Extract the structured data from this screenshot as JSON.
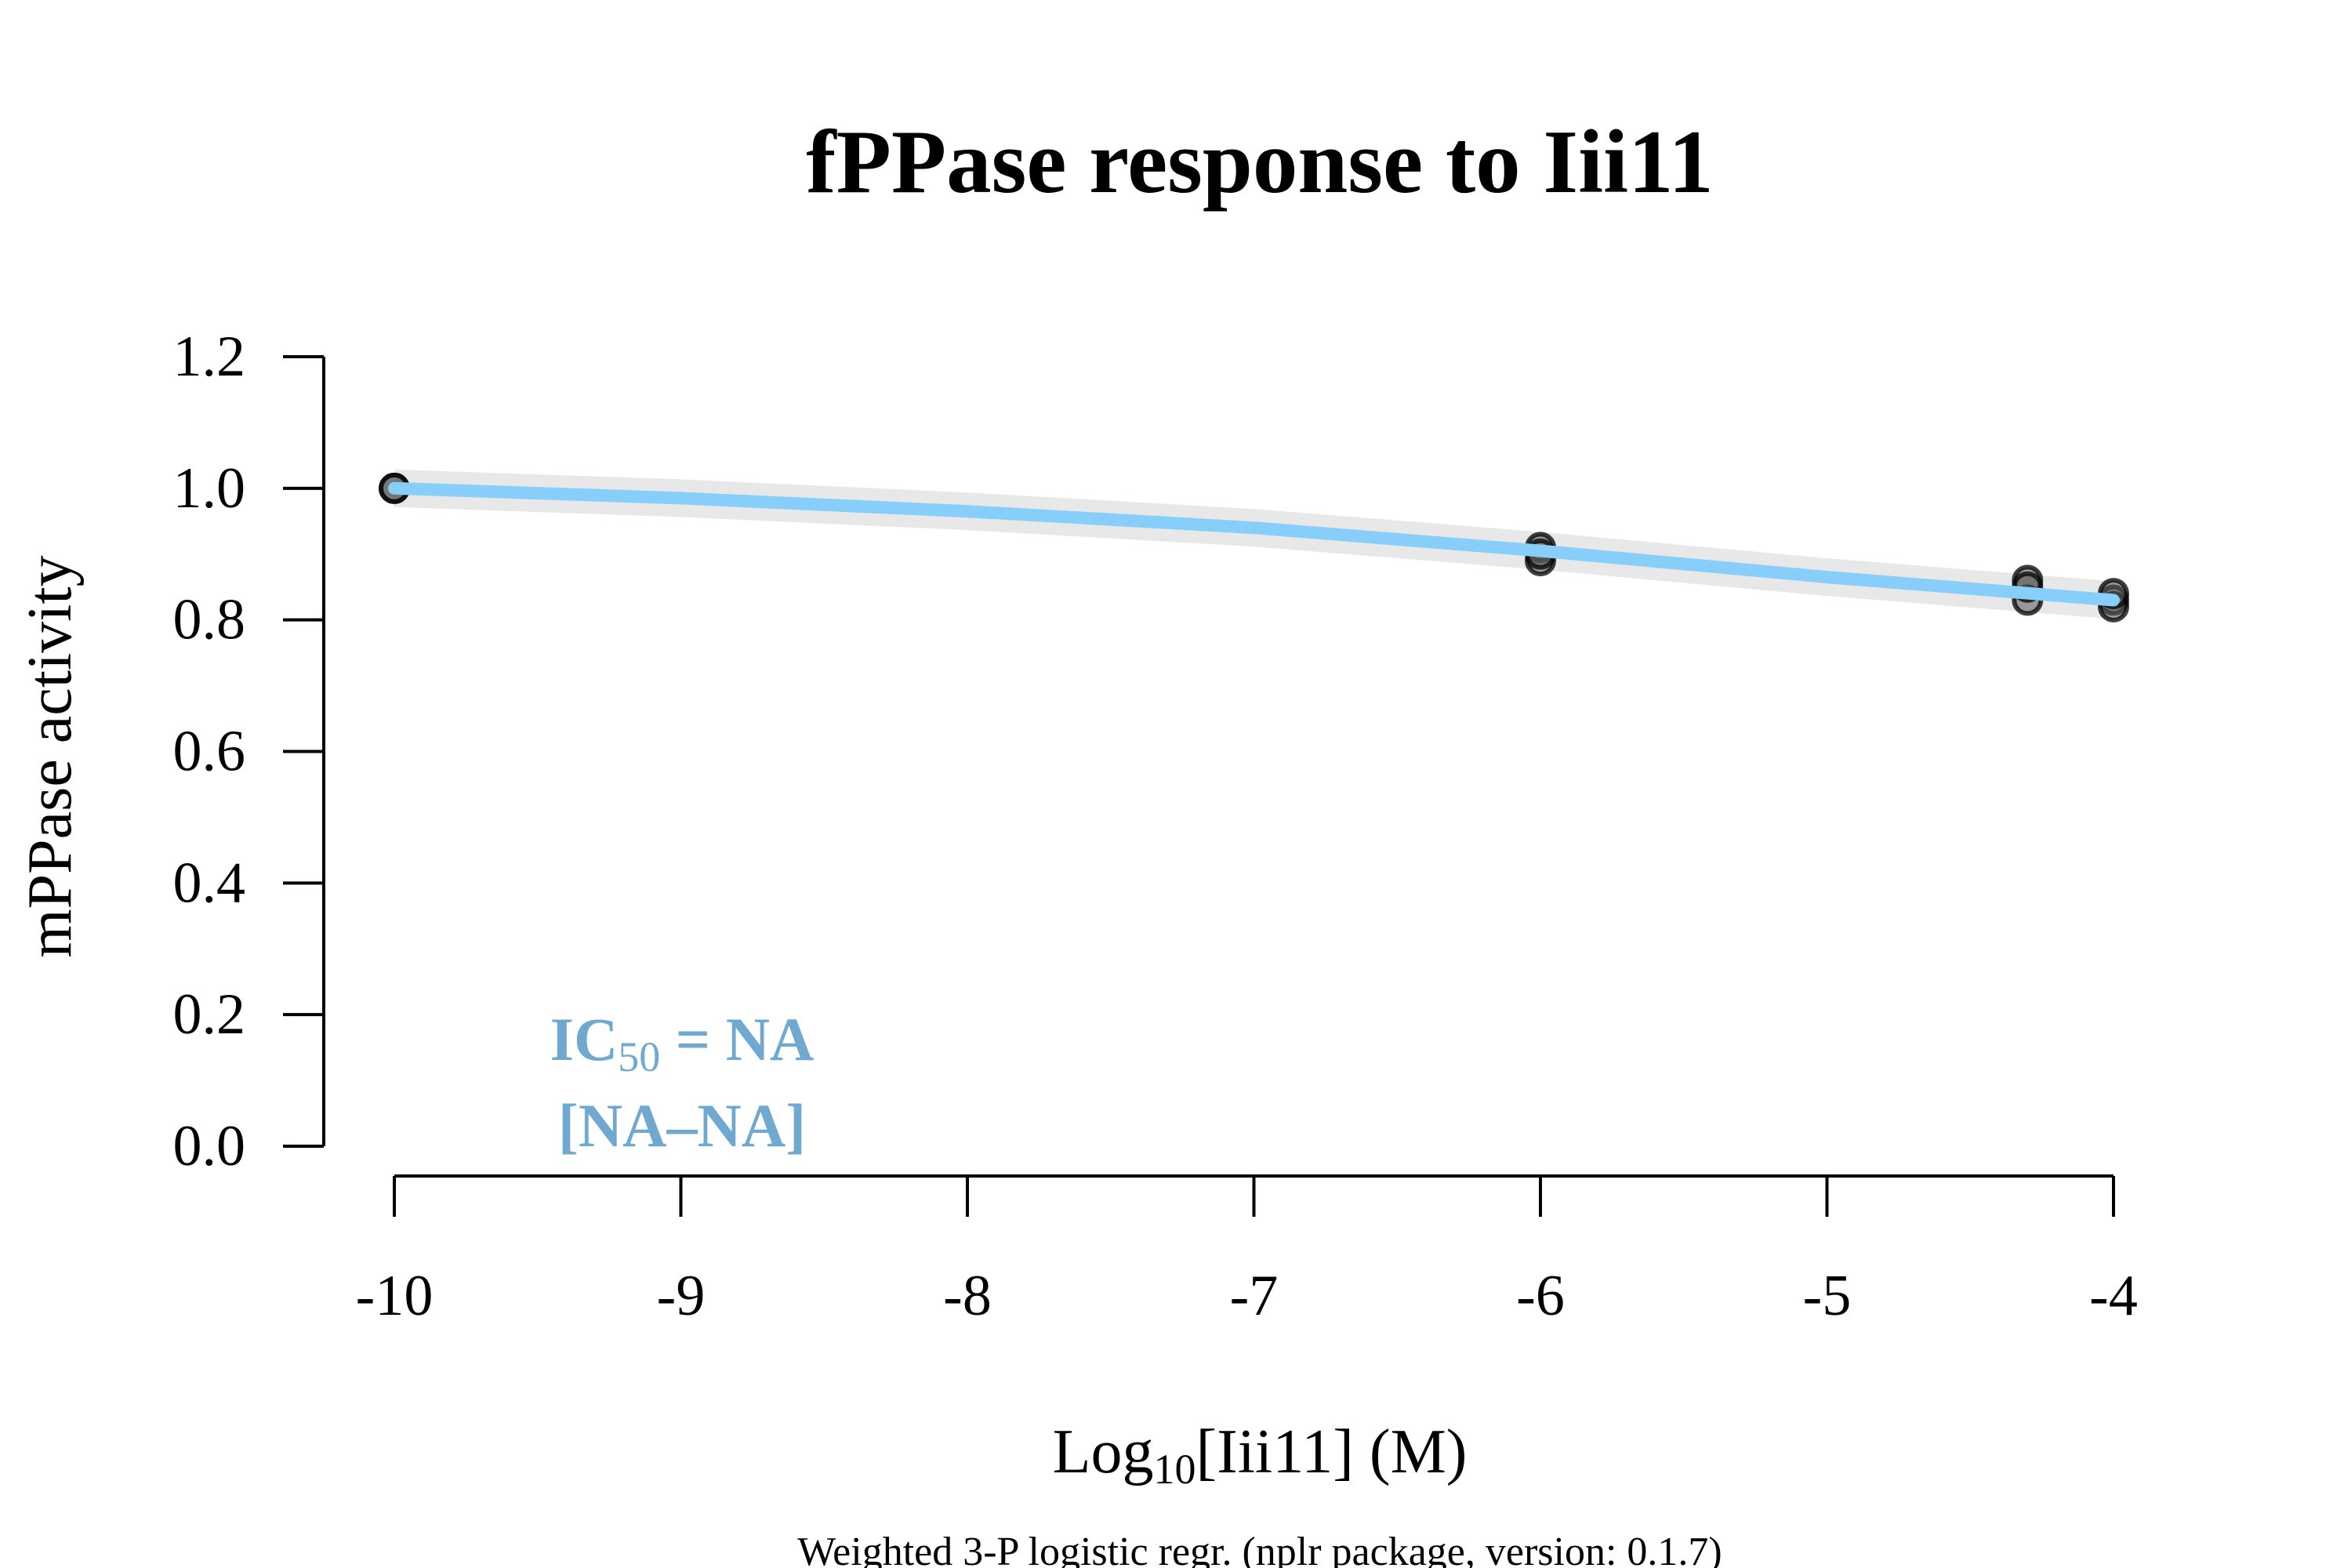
{
  "chart_data": {
    "type": "scatter",
    "title": "fPPase response to Iii11",
    "xlabel": {
      "prefix": "Log",
      "sub": "10",
      "suffix": "[Iii11] (M)"
    },
    "ylabel": "mPPase activity",
    "subtitle": "Weighted 3-P logistic regr. (nplr package, version: 0.1.7)",
    "xlim": [
      -10,
      -4
    ],
    "ylim": [
      0,
      1.2
    ],
    "x_ticks": [
      -10,
      -9,
      -8,
      -7,
      -6,
      -5,
      -4
    ],
    "x_tick_labels": [
      "-10",
      "-9",
      "-8",
      "-7",
      "-6",
      "-5",
      "-4"
    ],
    "y_ticks": [
      0,
      0.2,
      0.4,
      0.6,
      0.8,
      1.0,
      1.2
    ],
    "y_tick_labels": [
      "0.0",
      "0.2",
      "0.4",
      "0.6",
      "0.8",
      "1.0",
      "1.2"
    ],
    "grid": false,
    "series": [
      {
        "kind": "points",
        "color": "#000000",
        "x": [
          -10,
          -10,
          -6,
          -6,
          -6,
          -4.3,
          -4.3,
          -4.3,
          -4,
          -4,
          -4
        ],
        "y": [
          1.0,
          1.0,
          0.91,
          0.89,
          0.9,
          0.86,
          0.83,
          0.85,
          0.83,
          0.82,
          0.84
        ]
      },
      {
        "kind": "fit",
        "color": "#87cefa",
        "band_color": "#e8e8e8",
        "x": [
          -10,
          -9,
          -8,
          -7,
          -6,
          -5,
          -4
        ],
        "y": [
          1.0,
          0.985,
          0.965,
          0.94,
          0.905,
          0.865,
          0.83
        ]
      }
    ],
    "annotation": {
      "line1_prefix": "IC",
      "line1_sub": "50",
      "line1_suffix": " = NA",
      "line2": "[NA–NA]",
      "color": "#6fa8d0"
    }
  }
}
